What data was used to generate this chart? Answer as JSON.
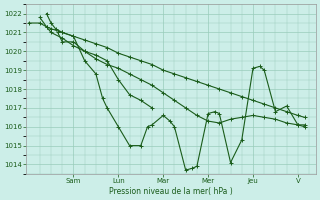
{
  "background_color": "#cceee8",
  "grid_color": "#99ccbb",
  "line_color": "#1a5c1a",
  "xlabel": "Pression niveau de la mer( hPa )",
  "ylim": [
    1013.5,
    1022.5
  ],
  "yticks": [
    1014,
    1015,
    1016,
    1017,
    1018,
    1019,
    1020,
    1021,
    1022
  ],
  "day_labels": [
    "Sam",
    "Lun",
    "Mar",
    "Mer",
    "Jeu",
    "V"
  ],
  "day_positions": [
    2.0,
    4.0,
    6.0,
    8.0,
    10.0,
    12.0
  ],
  "xlim": [
    -0.1,
    12.8
  ],
  "line1_x": [
    0.0,
    0.5,
    0.8,
    1.0,
    1.5,
    2.0,
    2.5,
    3.0,
    3.5,
    4.0,
    4.5,
    5.0,
    5.5,
    6.0,
    6.5,
    7.0,
    7.5,
    8.0,
    8.5,
    9.0,
    9.5,
    10.0,
    10.5,
    11.0,
    11.5,
    12.0,
    12.3
  ],
  "line1_y": [
    1021.5,
    1021.5,
    1021.3,
    1021.2,
    1021.0,
    1020.8,
    1020.6,
    1020.4,
    1020.2,
    1019.9,
    1019.7,
    1019.5,
    1019.3,
    1019.0,
    1018.8,
    1018.6,
    1018.4,
    1018.2,
    1018.0,
    1017.8,
    1017.6,
    1017.4,
    1017.2,
    1017.0,
    1016.8,
    1016.6,
    1016.5
  ],
  "line2_x": [
    0.5,
    0.8,
    1.0,
    1.5,
    2.0,
    2.5,
    3.0,
    3.5,
    4.0,
    4.5,
    5.0,
    5.5,
    6.0,
    6.5,
    7.0,
    7.5,
    8.0,
    8.5,
    9.0,
    9.5,
    10.0,
    10.5,
    11.0,
    11.5,
    12.0,
    12.3
  ],
  "line2_y": [
    1021.8,
    1021.3,
    1021.0,
    1020.7,
    1020.3,
    1020.0,
    1019.6,
    1019.3,
    1019.1,
    1018.8,
    1018.5,
    1018.2,
    1017.8,
    1017.4,
    1017.0,
    1016.6,
    1016.3,
    1016.2,
    1016.4,
    1016.5,
    1016.6,
    1016.5,
    1016.4,
    1016.2,
    1016.1,
    1016.0
  ],
  "line3_x": [
    0.8,
    1.0,
    1.2,
    1.5,
    2.0,
    2.5,
    3.0,
    3.3,
    3.5,
    4.0,
    4.5,
    5.0,
    5.3,
    5.5,
    6.0,
    6.3,
    6.5,
    7.0,
    7.3,
    7.5,
    8.0,
    8.3,
    8.5,
    9.0,
    9.5,
    10.0,
    10.3,
    10.5,
    11.0,
    11.5,
    12.0,
    12.3
  ],
  "line3_y": [
    1022.0,
    1021.5,
    1021.2,
    1021.0,
    1020.8,
    1019.5,
    1018.8,
    1017.5,
    1017.0,
    1016.0,
    1015.0,
    1015.0,
    1016.0,
    1016.1,
    1016.6,
    1016.3,
    1016.0,
    1013.7,
    1013.8,
    1013.9,
    1016.7,
    1016.8,
    1016.7,
    1014.1,
    1015.3,
    1019.1,
    1019.2,
    1019.0,
    1016.8,
    1017.1,
    1016.1,
    1016.1
  ],
  "line4_x": [
    1.3,
    1.5,
    2.0,
    2.5,
    3.0,
    3.5,
    4.0,
    4.5,
    5.0,
    5.5
  ],
  "line4_y": [
    1021.0,
    1020.5,
    1020.5,
    1020.0,
    1019.8,
    1019.5,
    1018.5,
    1017.7,
    1017.4,
    1017.0
  ]
}
